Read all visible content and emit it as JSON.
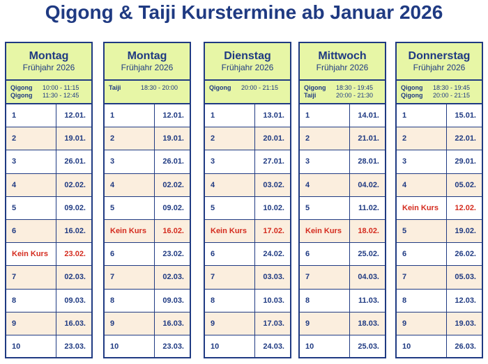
{
  "title": "Qigong & Taiji Kurstermine ab Januar 2026",
  "colors": {
    "accent": "#1f3a82",
    "header_bg": "#e7f6a6",
    "alt_row": "#fbeede",
    "cancel": "#d42b1e"
  },
  "columns": [
    {
      "day": "Montag",
      "season": "Frühjahr 2026",
      "times": [
        {
          "name": "Qigong",
          "time": "10:00 - 11:15"
        },
        {
          "name": "Qigong",
          "time": "11:30 - 12:45"
        }
      ],
      "rows": [
        {
          "label": "1",
          "date": "12.01.",
          "off": false
        },
        {
          "label": "2",
          "date": "19.01.",
          "off": false
        },
        {
          "label": "3",
          "date": "26.01.",
          "off": false
        },
        {
          "label": "4",
          "date": "02.02.",
          "off": false
        },
        {
          "label": "5",
          "date": "09.02.",
          "off": false
        },
        {
          "label": "6",
          "date": "16.02.",
          "off": false
        },
        {
          "label": "Kein Kurs",
          "date": "23.02.",
          "off": true
        },
        {
          "label": "7",
          "date": "02.03.",
          "off": false
        },
        {
          "label": "8",
          "date": "09.03.",
          "off": false
        },
        {
          "label": "9",
          "date": "16.03.",
          "off": false
        },
        {
          "label": "10",
          "date": "23.03.",
          "off": false
        }
      ]
    },
    {
      "day": "Montag",
      "season": "Frühjahr 2026",
      "times": [
        {
          "name": "Taiji",
          "time": "18:30 - 20:00"
        }
      ],
      "rows": [
        {
          "label": "1",
          "date": "12.01.",
          "off": false
        },
        {
          "label": "2",
          "date": "19.01.",
          "off": false
        },
        {
          "label": "3",
          "date": "26.01.",
          "off": false
        },
        {
          "label": "4",
          "date": "02.02.",
          "off": false
        },
        {
          "label": "5",
          "date": "09.02.",
          "off": false
        },
        {
          "label": "Kein Kurs",
          "date": "16.02.",
          "off": true
        },
        {
          "label": "6",
          "date": "23.02.",
          "off": false
        },
        {
          "label": "7",
          "date": "02.03.",
          "off": false
        },
        {
          "label": "8",
          "date": "09.03.",
          "off": false
        },
        {
          "label": "9",
          "date": "16.03.",
          "off": false
        },
        {
          "label": "10",
          "date": "23.03.",
          "off": false
        }
      ]
    },
    {
      "day": "Dienstag",
      "season": "Frühjahr 2026",
      "times": [
        {
          "name": "Qigong",
          "time": "20:00 - 21:15"
        }
      ],
      "rows": [
        {
          "label": "1",
          "date": "13.01.",
          "off": false
        },
        {
          "label": "2",
          "date": "20.01.",
          "off": false
        },
        {
          "label": "3",
          "date": "27.01.",
          "off": false
        },
        {
          "label": "4",
          "date": "03.02.",
          "off": false
        },
        {
          "label": "5",
          "date": "10.02.",
          "off": false
        },
        {
          "label": "Kein Kurs",
          "date": "17.02.",
          "off": true
        },
        {
          "label": "6",
          "date": "24.02.",
          "off": false
        },
        {
          "label": "7",
          "date": "03.03.",
          "off": false
        },
        {
          "label": "8",
          "date": "10.03.",
          "off": false
        },
        {
          "label": "9",
          "date": "17.03.",
          "off": false
        },
        {
          "label": "10",
          "date": "24.03.",
          "off": false
        }
      ]
    },
    {
      "day": "Mittwoch",
      "season": "Frühjahr 2026",
      "times": [
        {
          "name": "Qigong",
          "time": "18:30 - 19:45"
        },
        {
          "name": "Taiji",
          "time": "20:00 - 21:30"
        }
      ],
      "rows": [
        {
          "label": "1",
          "date": "14.01.",
          "off": false
        },
        {
          "label": "2",
          "date": "21.01.",
          "off": false
        },
        {
          "label": "3",
          "date": "28.01.",
          "off": false
        },
        {
          "label": "4",
          "date": "04.02.",
          "off": false
        },
        {
          "label": "5",
          "date": "11.02.",
          "off": false
        },
        {
          "label": "Kein Kurs",
          "date": "18.02.",
          "off": true
        },
        {
          "label": "6",
          "date": "25.02.",
          "off": false
        },
        {
          "label": "7",
          "date": "04.03.",
          "off": false
        },
        {
          "label": "8",
          "date": "11.03.",
          "off": false
        },
        {
          "label": "9",
          "date": "18.03.",
          "off": false
        },
        {
          "label": "10",
          "date": "25.03.",
          "off": false
        }
      ]
    },
    {
      "day": "Donnerstag",
      "season": "Frühjahr 2026",
      "times": [
        {
          "name": "Qigong",
          "time": "18:30 - 19:45"
        },
        {
          "name": "Qigong",
          "time": "20:00 - 21:15"
        }
      ],
      "rows": [
        {
          "label": "1",
          "date": "15.01.",
          "off": false
        },
        {
          "label": "2",
          "date": "22.01.",
          "off": false
        },
        {
          "label": "3",
          "date": "29.01.",
          "off": false
        },
        {
          "label": "4",
          "date": "05.02.",
          "off": false
        },
        {
          "label": "Kein Kurs",
          "date": "12.02.",
          "off": true
        },
        {
          "label": "5",
          "date": "19.02.",
          "off": false
        },
        {
          "label": "6",
          "date": "26.02.",
          "off": false
        },
        {
          "label": "7",
          "date": "05.03.",
          "off": false
        },
        {
          "label": "8",
          "date": "12.03.",
          "off": false
        },
        {
          "label": "9",
          "date": "19.03.",
          "off": false
        },
        {
          "label": "10",
          "date": "26.03.",
          "off": false
        }
      ]
    }
  ]
}
